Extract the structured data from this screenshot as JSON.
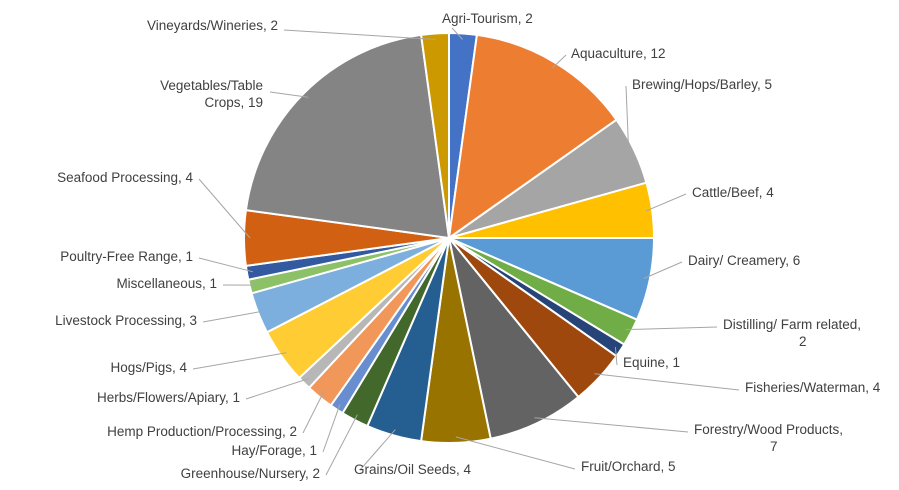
{
  "chart_data": {
    "type": "pie",
    "title": "",
    "legend": "none",
    "start_category": "Agri-Tourism",
    "direction": "clockwise",
    "slices": [
      {
        "label": "Agri-Tourism",
        "value": 2,
        "display": [
          "Agri-Tourism, 2"
        ],
        "color": "#4472C4"
      },
      {
        "label": "Aquaculture",
        "value": 12,
        "display": [
          "Aquaculture, 12"
        ],
        "color": "#ED7D31"
      },
      {
        "label": "Brewing/Hops/Barley",
        "value": 5,
        "display": [
          "Brewing/Hops/Barley, 5"
        ],
        "color": "#A5A5A5"
      },
      {
        "label": "Cattle/Beef",
        "value": 4,
        "display": [
          "Cattle/Beef, 4"
        ],
        "color": "#FFC000"
      },
      {
        "label": "Dairy/ Creamery",
        "value": 6,
        "display": [
          "Dairy/ Creamery, 6"
        ],
        "color": "#5B9BD5"
      },
      {
        "label": "Distilling/ Farm related",
        "value": 2,
        "display": [
          "Distilling/ Farm related,",
          "2"
        ],
        "color": "#70AD47"
      },
      {
        "label": "Equine",
        "value": 1,
        "display": [
          "Equine, 1"
        ],
        "color": "#264478"
      },
      {
        "label": "Fisheries/Waterman",
        "value": 4,
        "display": [
          "Fisheries/Waterman, 4"
        ],
        "color": "#9E480E"
      },
      {
        "label": "Forestry/Wood Products",
        "value": 7,
        "display": [
          "Forestry/Wood Products,",
          "7"
        ],
        "color": "#636363"
      },
      {
        "label": "Fruit/Orchard",
        "value": 5,
        "display": [
          "Fruit/Orchard, 5"
        ],
        "color": "#997300"
      },
      {
        "label": "Grains/Oil Seeds",
        "value": 4,
        "display": [
          "Grains/Oil Seeds, 4"
        ],
        "color": "#255E91"
      },
      {
        "label": "Greenhouse/Nursery",
        "value": 2,
        "display": [
          "Greenhouse/Nursery, 2"
        ],
        "color": "#43682B"
      },
      {
        "label": "Hay/Forage",
        "value": 1,
        "display": [
          "Hay/Forage, 1"
        ],
        "color": "#698ED0"
      },
      {
        "label": "Hemp Production/Processing",
        "value": 2,
        "display": [
          "Hemp Production/Processing, 2"
        ],
        "color": "#F1975A"
      },
      {
        "label": "Herbs/Flowers/Apiary",
        "value": 1,
        "display": [
          "Herbs/Flowers/Apiary, 1"
        ],
        "color": "#B7B7B7"
      },
      {
        "label": "Hogs/Pigs",
        "value": 4,
        "display": [
          "Hogs/Pigs, 4"
        ],
        "color": "#FFCD33"
      },
      {
        "label": "Livestock Processing",
        "value": 3,
        "display": [
          "Livestock Processing, 3"
        ],
        "color": "#7CAFDD"
      },
      {
        "label": "Miscellaneous",
        "value": 1,
        "display": [
          "Miscellaneous, 1"
        ],
        "color": "#8CC168"
      },
      {
        "label": "Poultry-Free Range",
        "value": 1,
        "display": [
          "Poultry-Free Range, 1"
        ],
        "color": "#335AA1"
      },
      {
        "label": "Seafood Processing",
        "value": 4,
        "display": [
          "Seafood Processing, 4"
        ],
        "color": "#D26012"
      },
      {
        "label": "Vegetables/Table Crops",
        "value": 19,
        "display": [
          "Vegetables/Table",
          "Crops, 19"
        ],
        "color": "#848484"
      },
      {
        "label": "Vineyards/Wineries",
        "value": 2,
        "display": [
          "Vineyards/Wineries, 2"
        ],
        "color": "#CC9A00"
      }
    ]
  }
}
